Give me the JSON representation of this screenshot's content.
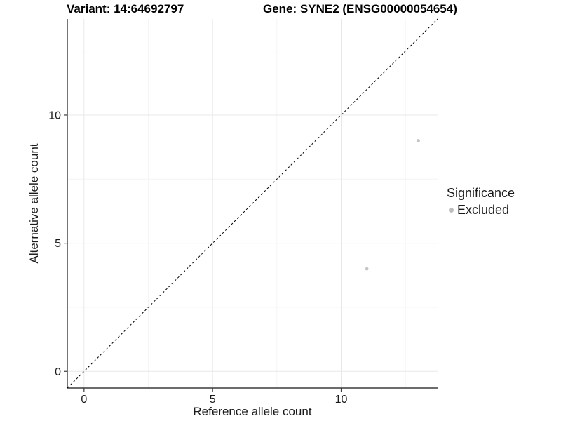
{
  "titles": {
    "variant": "Variant: 14:64692797",
    "gene": "Gene: SYNE2 (ENSG00000054654)"
  },
  "legend": {
    "title": "Significance",
    "items": [
      {
        "label": "Excluded",
        "color": "#bdbdbd"
      }
    ]
  },
  "colors": {
    "grid_major": "#e8e8e8",
    "grid_minor": "#f4f4f4",
    "axis_line": "#3b3b3b",
    "tick_mark": "#3b3b3b",
    "tick_text": "#1a1a1a",
    "identity_line": "#000000",
    "point": "#c4c4c4",
    "background": "#ffffff"
  },
  "chart_data": {
    "type": "scatter",
    "title": "Variant: 14:64692797 / Gene: SYNE2 (ENSG00000054654)",
    "xlabel": "Reference allele count",
    "ylabel": "Alternative allele count",
    "xlim": [
      -0.65,
      13.75
    ],
    "ylim": [
      -0.65,
      13.75
    ],
    "x_ticks": [
      0,
      5,
      10
    ],
    "y_ticks": [
      0,
      5,
      10
    ],
    "x_minor_ticks": [
      2.5,
      7.5,
      12.5
    ],
    "y_minor_ticks": [
      2.5,
      7.5,
      12.5
    ],
    "grid": true,
    "legend_position": "right",
    "legend_title": "Significance",
    "series": [
      {
        "name": "Excluded",
        "color": "#c4c4c4",
        "points": [
          {
            "x": 13,
            "y": 9
          },
          {
            "x": 11,
            "y": 4
          }
        ]
      }
    ],
    "identity_line": {
      "equation": "y = x",
      "style": "dashed",
      "color": "#000000"
    }
  }
}
